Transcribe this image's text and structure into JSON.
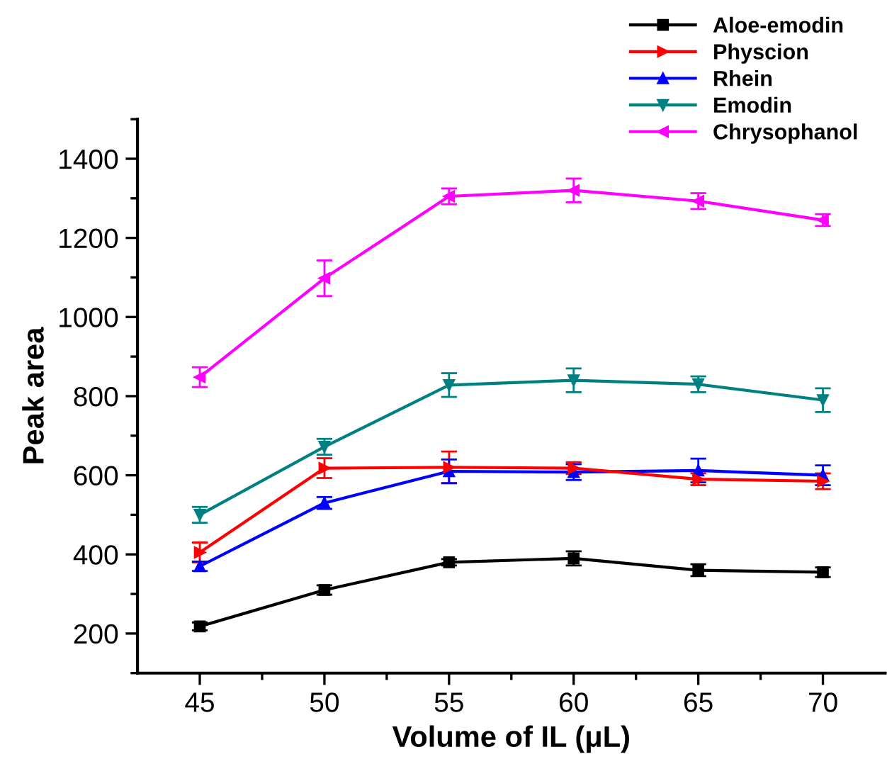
{
  "chart_data": {
    "type": "line",
    "xlabel": "Volume of IL (μL)",
    "ylabel": "Peak area",
    "x": [
      45,
      50,
      55,
      60,
      65,
      70
    ],
    "xlim": [
      42.5,
      72.5
    ],
    "xticks": [
      45,
      {
        "value": 47.5,
        "label": null
      },
      50,
      {
        "value": 52.5,
        "label": null
      },
      55,
      {
        "value": 57.5,
        "label": null
      },
      60,
      {
        "value": 62.5,
        "label": null
      },
      65,
      {
        "value": 67.5,
        "label": null
      },
      70
    ],
    "ylim": [
      100,
      1500
    ],
    "yticks": [
      {
        "value": 100,
        "label": null
      },
      200,
      {
        "value": 300,
        "label": null
      },
      400,
      {
        "value": 500,
        "label": null
      },
      600,
      {
        "value": 700,
        "label": null
      },
      800,
      {
        "value": 900,
        "label": null
      },
      1000,
      {
        "value": 1100,
        "label": null
      },
      1200,
      {
        "value": 1300,
        "label": null
      },
      1400,
      {
        "value": 1500,
        "label": null
      }
    ],
    "grid": false,
    "legend": "top right",
    "line_style": "solid",
    "series": [
      {
        "name": "Aloe-emodin",
        "color": "#000000",
        "marker": "square",
        "values": [
          218,
          310,
          380,
          390,
          360,
          355
        ],
        "errors": [
          10,
          12,
          8,
          18,
          15,
          12
        ]
      },
      {
        "name": "Physcion",
        "color": "#ff0000",
        "marker": "triangle-right",
        "values": [
          405,
          618,
          620,
          618,
          590,
          585
        ],
        "errors": [
          25,
          25,
          40,
          15,
          15,
          20
        ]
      },
      {
        "name": "Rhein",
        "color": "#0000ff",
        "marker": "triangle",
        "values": [
          370,
          530,
          610,
          608,
          612,
          600
        ],
        "errors": [
          12,
          15,
          30,
          20,
          30,
          25
        ]
      },
      {
        "name": "Emodin",
        "color": "#008080",
        "marker": "triangle-down",
        "values": [
          500,
          672,
          828,
          840,
          830,
          790
        ],
        "errors": [
          20,
          20,
          30,
          30,
          20,
          30
        ]
      },
      {
        "name": "Chrysophanol",
        "color": "#ff00ff",
        "marker": "triangle-left",
        "values": [
          848,
          1098,
          1305,
          1320,
          1293,
          1245
        ],
        "errors": [
          25,
          45,
          20,
          30,
          20,
          15
        ]
      }
    ]
  }
}
